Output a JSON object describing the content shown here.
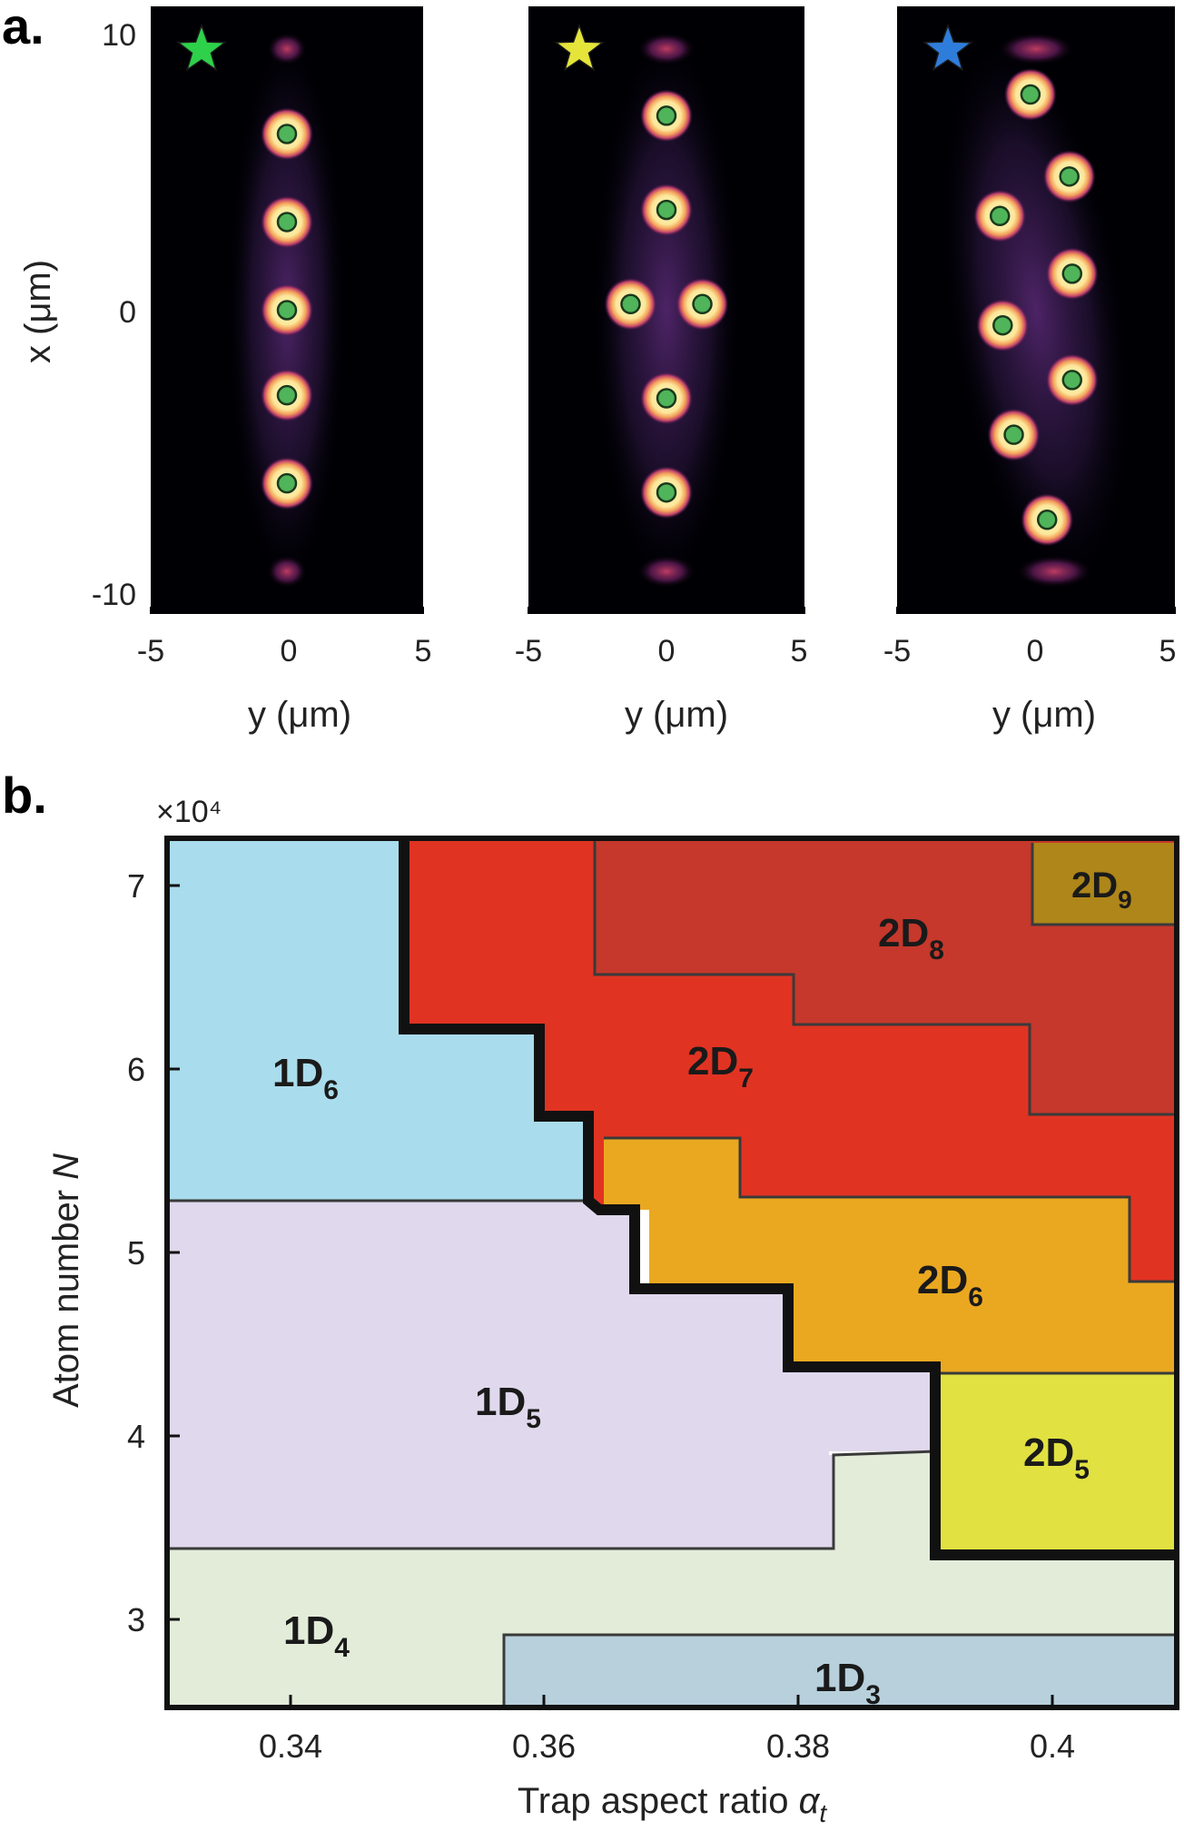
{
  "panel_a": {
    "label": "a.",
    "x_tick_labels": [
      "10",
      "0",
      "-10"
    ],
    "x_axis_label": "x (μm)",
    "y_axis_label": "y (μm)",
    "y_tick_labels": [
      "-5",
      "0",
      "5"
    ],
    "star_colors": [
      "#2ed14a",
      "#e4e43a",
      "#2f7ddb"
    ]
  },
  "panel_b": {
    "label": "b.",
    "exponent_label": "×10⁴",
    "y_label": "Atom number ",
    "y_label_var": "N",
    "x_label": "Trap aspect ratio ",
    "x_label_var": "α",
    "x_label_sub": "t",
    "x_ticks": [
      "0.34",
      "0.36",
      "0.38",
      "0.4"
    ],
    "y_ticks": [
      "7",
      "6",
      "5",
      "4",
      "3"
    ],
    "regions": [
      {
        "main": "1D",
        "sub": "6"
      },
      {
        "main": "1D",
        "sub": "5"
      },
      {
        "main": "1D",
        "sub": "4"
      },
      {
        "main": "1D",
        "sub": "3"
      },
      {
        "main": "2D",
        "sub": "5"
      },
      {
        "main": "2D",
        "sub": "6"
      },
      {
        "main": "2D",
        "sub": "7"
      },
      {
        "main": "2D",
        "sub": "8"
      },
      {
        "main": "2D",
        "sub": "9"
      }
    ]
  },
  "chart_data": [
    {
      "type": "heatmap",
      "panel": "a",
      "xlabel": "y (μm)",
      "ylabel": "x (μm)",
      "xlim": [
        -5,
        5
      ],
      "ylim": [
        -10,
        10
      ],
      "x_ticks": [
        -5,
        0,
        5
      ],
      "y_ticks": [
        10,
        0,
        -10
      ],
      "subplots": [
        {
          "marker": "green star",
          "droplets": [
            [
              0,
              5.8
            ],
            [
              0,
              2.9
            ],
            [
              0,
              0.0
            ],
            [
              0,
              -2.8
            ],
            [
              0,
              -5.7
            ]
          ]
        },
        {
          "marker": "yellow star",
          "droplets": [
            [
              0,
              6.4
            ],
            [
              0,
              3.3
            ],
            [
              -1.3,
              0.2
            ],
            [
              1.3,
              0.2
            ],
            [
              0,
              -2.9
            ],
            [
              0,
              -6.0
            ]
          ]
        },
        {
          "marker": "blue star",
          "droplets": [
            [
              -0.2,
              7.1
            ],
            [
              1.2,
              4.4
            ],
            [
              -1.3,
              3.1
            ],
            [
              1.3,
              1.2
            ],
            [
              -1.2,
              -0.5
            ],
            [
              1.3,
              -2.3
            ],
            [
              -0.8,
              -4.1
            ],
            [
              0.4,
              -6.9
            ]
          ]
        }
      ]
    },
    {
      "type": "area",
      "panel": "b",
      "xlabel": "Trap aspect ratio αt",
      "ylabel": "Atom number N",
      "y_scale_label": "×10^4",
      "xlim": [
        0.33,
        0.41
      ],
      "ylim": [
        2.5,
        7.3
      ],
      "x_ticks": [
        0.34,
        0.36,
        0.38,
        0.4
      ],
      "y_ticks": [
        3,
        4,
        5,
        6,
        7
      ],
      "regions": [
        {
          "name": "1D6",
          "color": "#a9dcec"
        },
        {
          "name": "1D5",
          "color": "#e0d8ec"
        },
        {
          "name": "1D4",
          "color": "#e2ecd9"
        },
        {
          "name": "1D3",
          "color": "#b7d0dc"
        },
        {
          "name": "2D5",
          "color": "#e1e141"
        },
        {
          "name": "2D6",
          "color": "#eaa820"
        },
        {
          "name": "2D7",
          "color": "#e13322"
        },
        {
          "name": "2D8",
          "color": "#c5382b"
        },
        {
          "name": "2D9",
          "color": "#ae8619"
        }
      ]
    }
  ]
}
